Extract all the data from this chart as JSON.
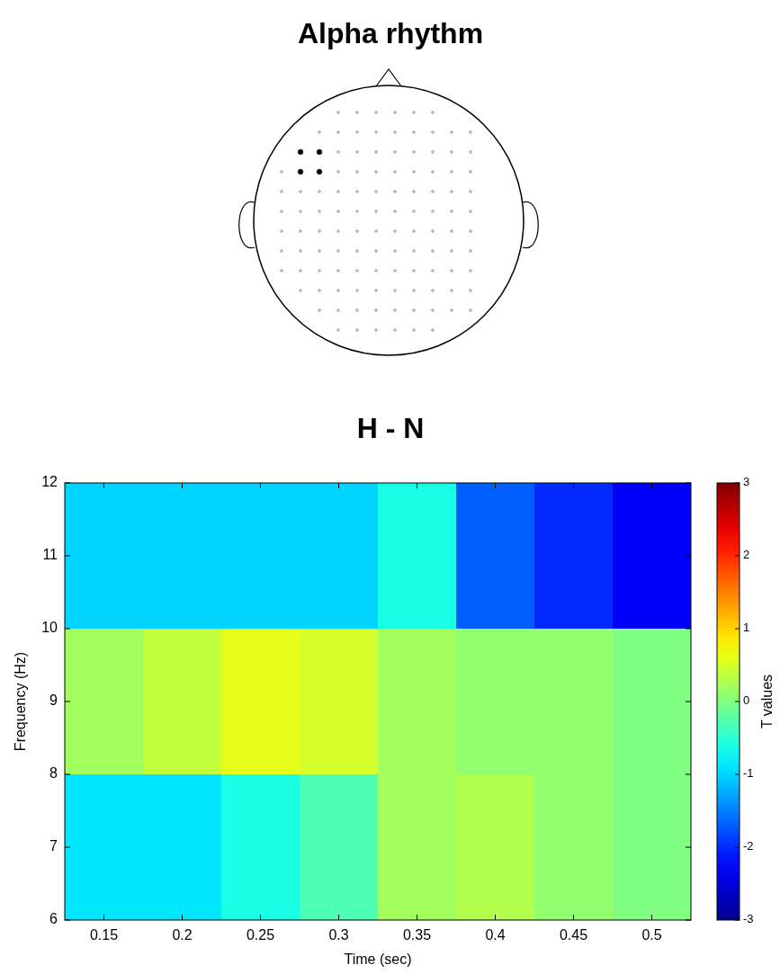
{
  "chart_data": {
    "type": "heatmap",
    "title": "Alpha rhythm",
    "subtitle": "H - N",
    "xlabel": "Time (sec)",
    "ylabel": "Frequency (Hz)",
    "clabel": "T values",
    "categories": [
      "0.15",
      "0.2",
      "0.25",
      "0.3",
      "0.35",
      "0.4",
      "0.45",
      "0.5"
    ],
    "cells": [
      [
        -1,
        -1,
        -1,
        -1,
        -0.6,
        -1.7,
        -2.0,
        -2.3
      ],
      [
        0.2,
        0.4,
        0.6,
        0.5,
        0.2,
        0.1,
        0.1,
        0.0
      ],
      [
        -0.9,
        -0.9,
        -0.6,
        -0.3,
        0.2,
        0.3,
        0.1,
        0.0
      ]
    ],
    "ylim": [
      6,
      12
    ],
    "yticks": [
      6,
      7,
      8,
      9,
      10,
      11,
      12
    ],
    "clim": [
      -3,
      3
    ],
    "cticks": [
      -3,
      -2,
      -1,
      0,
      1,
      2,
      3
    ]
  }
}
